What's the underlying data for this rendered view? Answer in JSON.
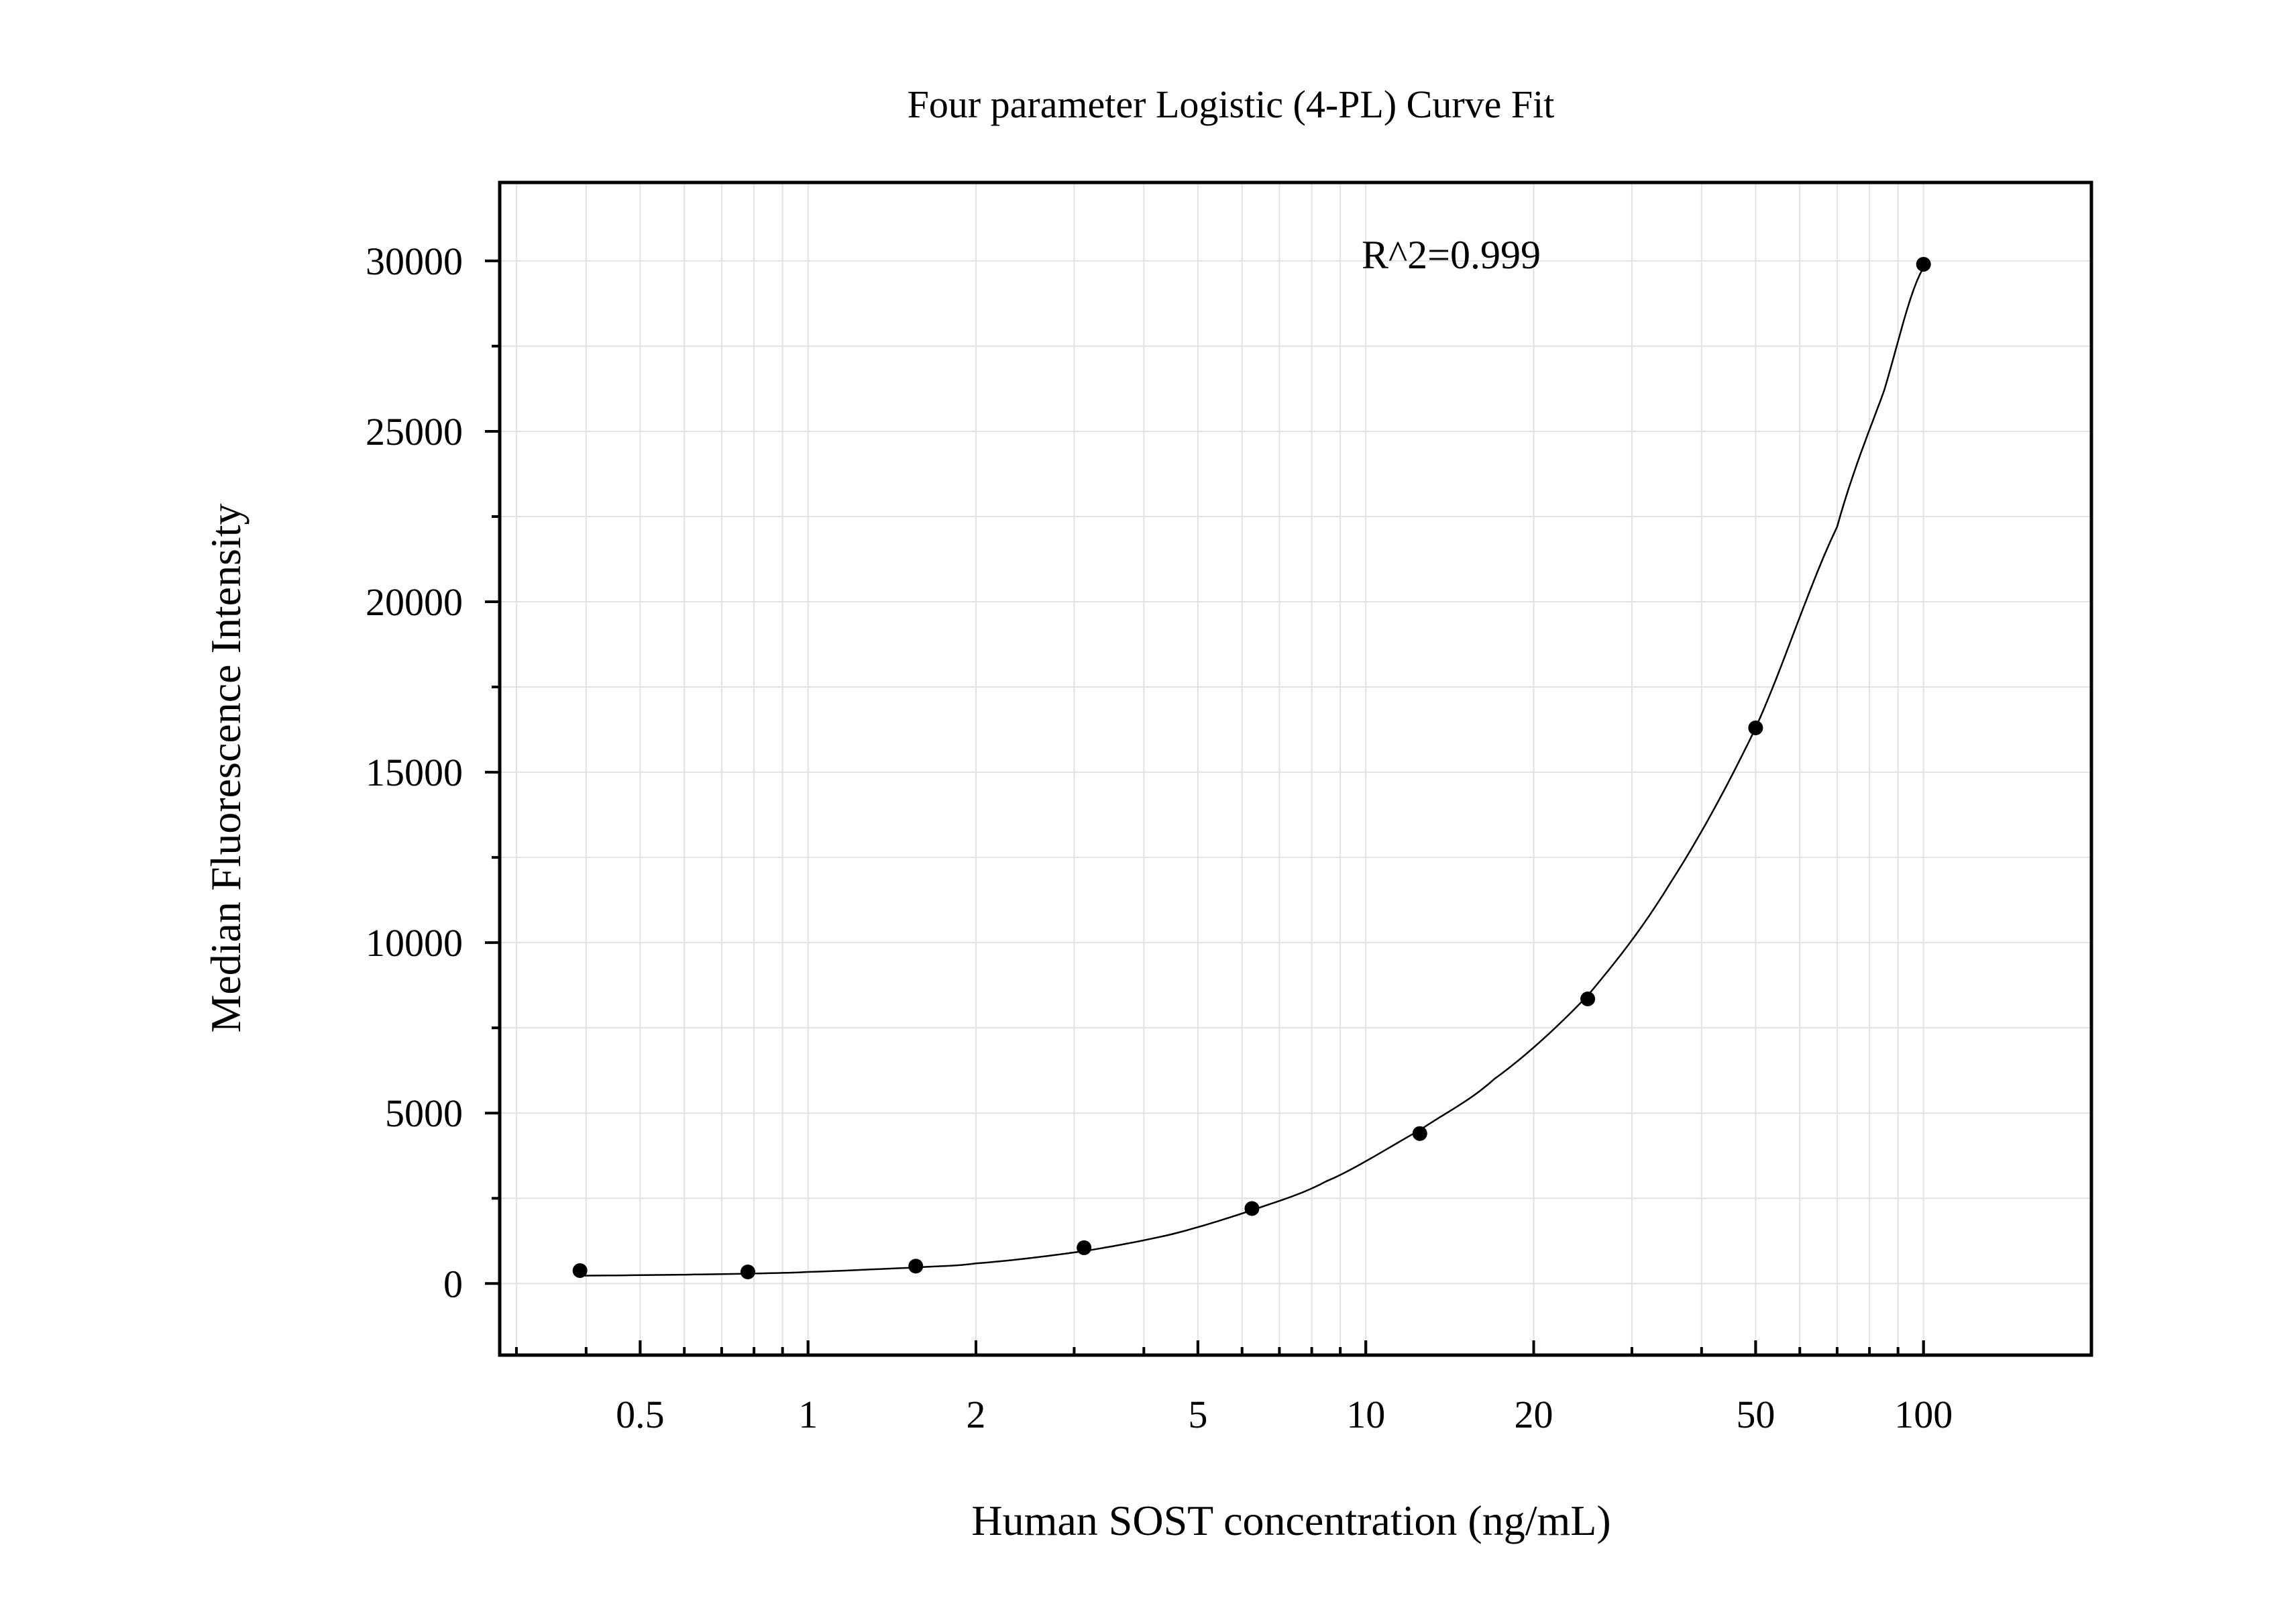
{
  "chart_data": {
    "type": "scatter",
    "title": "Four parameter Logistic (4-PL) Curve Fit",
    "xlabel": "Human SOST concentration (ng/mL)",
    "ylabel": "Median Fluorescence Intensity",
    "annotation": "R^2=0.999",
    "xscale": "log",
    "xlim": [
      0.28,
      200
    ],
    "ylim": [
      -2100,
      32300
    ],
    "xticks": [
      {
        "value": 0.5,
        "label": "0.5"
      },
      {
        "value": 1,
        "label": "1"
      },
      {
        "value": 2,
        "label": "2"
      },
      {
        "value": 5,
        "label": "5"
      },
      {
        "value": 10,
        "label": "10"
      },
      {
        "value": 20,
        "label": "20"
      },
      {
        "value": 50,
        "label": "50"
      },
      {
        "value": 100,
        "label": "100"
      }
    ],
    "yticks": [
      {
        "value": 0,
        "label": "0"
      },
      {
        "value": 5000,
        "label": "5000"
      },
      {
        "value": 10000,
        "label": "10000"
      },
      {
        "value": 15000,
        "label": "15000"
      },
      {
        "value": 20000,
        "label": "20000"
      },
      {
        "value": 25000,
        "label": "25000"
      },
      {
        "value": 30000,
        "label": "30000"
      }
    ],
    "grid": true,
    "points": [
      {
        "x": 0.39,
        "y": 380
      },
      {
        "x": 0.78,
        "y": 340
      },
      {
        "x": 1.56,
        "y": 510
      },
      {
        "x": 3.125,
        "y": 1050
      },
      {
        "x": 6.25,
        "y": 2200
      },
      {
        "x": 12.5,
        "y": 4400
      },
      {
        "x": 25,
        "y": 8350
      },
      {
        "x": 50,
        "y": 16300
      },
      {
        "x": 100,
        "y": 29900
      }
    ],
    "fit": {
      "model": "4PL",
      "curve": [
        {
          "x": 0.39,
          "y": 230
        },
        {
          "x": 0.6,
          "y": 260
        },
        {
          "x": 0.78,
          "y": 290
        },
        {
          "x": 1,
          "y": 340
        },
        {
          "x": 1.56,
          "y": 470
        },
        {
          "x": 2,
          "y": 590
        },
        {
          "x": 3.125,
          "y": 950
        },
        {
          "x": 4.5,
          "y": 1450
        },
        {
          "x": 6.25,
          "y": 2150
        },
        {
          "x": 8.5,
          "y": 3000
        },
        {
          "x": 12.5,
          "y": 4500
        },
        {
          "x": 17,
          "y": 6000
        },
        {
          "x": 25,
          "y": 8450
        },
        {
          "x": 35,
          "y": 11700
        },
        {
          "x": 50,
          "y": 16300
        },
        {
          "x": 70,
          "y": 22200
        },
        {
          "x": 85,
          "y": 26200
        },
        {
          "x": 100,
          "y": 29800
        }
      ]
    }
  }
}
